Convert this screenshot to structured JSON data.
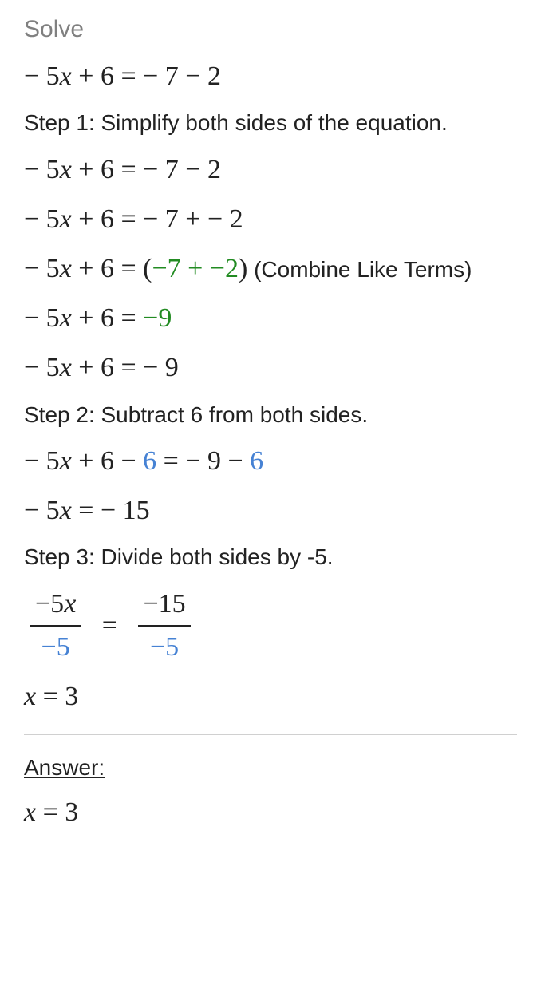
{
  "heading": "Solve",
  "main_equation": {
    "lhs": "− 5",
    "x": "x",
    "lhs2": " + 6 = − 7 − 2"
  },
  "step1": {
    "label": "Step 1: Simplify both sides of the equation.",
    "line1_a": "− 5",
    "line1_x": "x",
    "line1_b": " + 6 = − 7 − 2",
    "line2_a": "− 5",
    "line2_x": "x",
    "line2_b": " + 6 = − 7 + − 2",
    "line3_a": "− 5",
    "line3_x": "x",
    "line3_b": " + 6 = (",
    "line3_c": "−7 + −2",
    "line3_d": ")",
    "line3_note": "  (Combine Like Terms)",
    "line4_a": "− 5",
    "line4_x": "x",
    "line4_b": " + 6 = ",
    "line4_c": "−9",
    "line5_a": "− 5",
    "line5_x": "x",
    "line5_b": " + 6 = − 9"
  },
  "step2": {
    "label": "Step 2: Subtract 6 from both sides.",
    "line1_a": "− 5",
    "line1_x": "x",
    "line1_b": " + 6 − ",
    "line1_c": "6",
    "line1_d": " = − 9 − ",
    "line1_e": "6",
    "line2_a": "− 5",
    "line2_x": "x",
    "line2_b": " = − 15"
  },
  "step3": {
    "label": "Step 3: Divide both sides by -5.",
    "frac1_num_a": "−5",
    "frac1_num_x": "x",
    "frac1_den": "−5",
    "eq": "=",
    "frac2_num": "−15",
    "frac2_den": "−5",
    "result_x": "x",
    "result_rest": " = 3"
  },
  "answer": {
    "label": "Answer:",
    "x": "x",
    "rest": " = 3"
  },
  "colors": {
    "heading": "#808080",
    "text": "#222222",
    "green": "#228B22",
    "blue": "#4682d4",
    "divider": "#d0d0d0",
    "background": "#ffffff"
  },
  "fonts": {
    "body": "Arial, Helvetica, sans-serif",
    "math": "Times New Roman, Times, serif",
    "heading_size": 30,
    "equation_size": 34,
    "step_size": 28
  }
}
